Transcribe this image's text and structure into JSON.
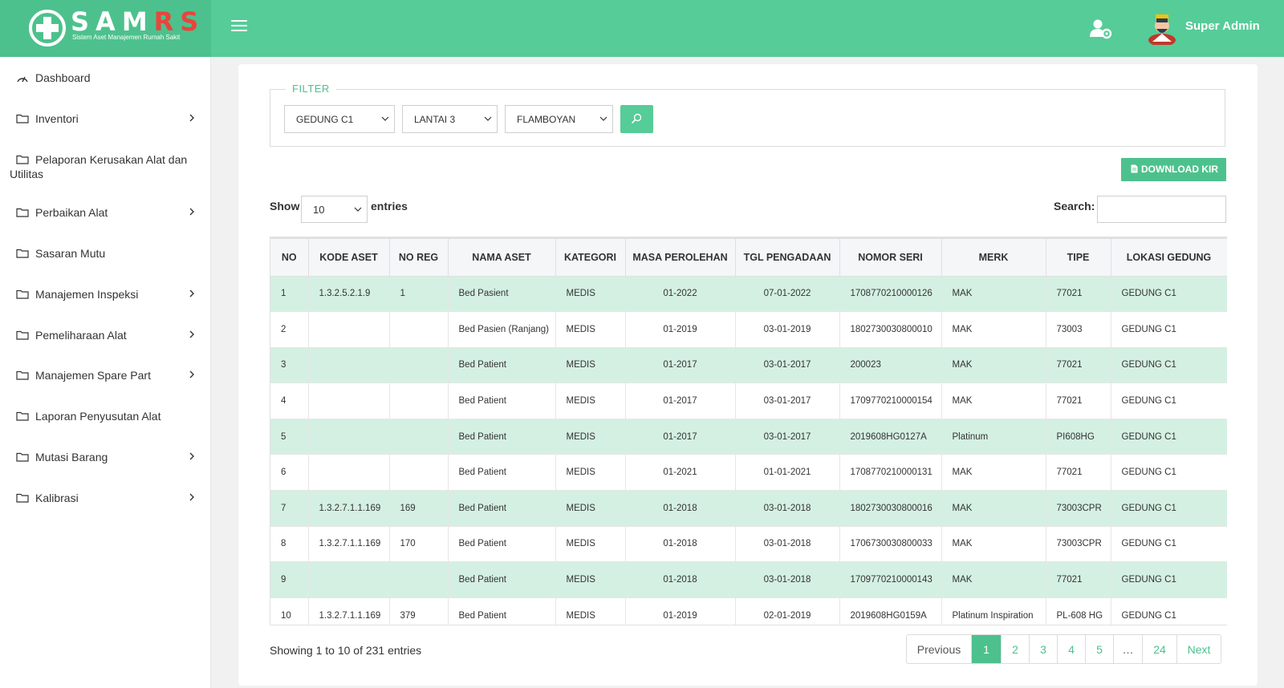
{
  "header": {
    "logo_text": "SAMRS",
    "logo_part1": "SAM",
    "logo_part2": "RS",
    "logo_subtitle": "Sistem Aset Manajemen Rumah Sakit",
    "user_name": "Super Admin",
    "brand_color": "#56cc98",
    "accent_red": "#e8453c"
  },
  "sidebar": {
    "items": [
      {
        "label": "Dashboard",
        "icon": "dashboard-icon",
        "has_submenu": false
      },
      {
        "label": "Inventori",
        "icon": "folder-icon",
        "has_submenu": true
      },
      {
        "label": "Pelaporan Kerusakan Alat dan",
        "label2": "Utilitas",
        "icon": "folder-icon",
        "has_submenu": false
      },
      {
        "label": "Perbaikan Alat",
        "icon": "folder-icon",
        "has_submenu": true
      },
      {
        "label": "Sasaran Mutu",
        "icon": "folder-icon",
        "has_submenu": false
      },
      {
        "label": "Manajemen Inspeksi",
        "icon": "folder-icon",
        "has_submenu": true
      },
      {
        "label": "Pemeliharaan Alat",
        "icon": "folder-icon",
        "has_submenu": true
      },
      {
        "label": "Manajemen Spare Part",
        "icon": "folder-icon",
        "has_submenu": true
      },
      {
        "label": "Laporan Penyusutan Alat",
        "icon": "folder-icon",
        "has_submenu": false
      },
      {
        "label": "Mutasi Barang",
        "icon": "folder-icon",
        "has_submenu": true
      },
      {
        "label": "Kalibrasi",
        "icon": "folder-icon",
        "has_submenu": true
      }
    ]
  },
  "filter": {
    "legend": "FILTER",
    "gedung": "GEDUNG C1",
    "lantai": "LANTAI 3",
    "ruangan": "FLAMBOYAN"
  },
  "toolbar": {
    "download_label": "DOWNLOAD KIR",
    "show_label": "Show",
    "entries_value": "10",
    "entries_label": "entries",
    "search_label": "Search:",
    "search_value": ""
  },
  "table": {
    "columns": [
      "NO",
      "KODE ASET",
      "NO REG",
      "NAMA ASET",
      "KATEGORI",
      "MASA PEROLEHAN",
      "TGL PENGADAAN",
      "NOMOR SERI",
      "MERK",
      "TIPE",
      "LOKASI GEDUNG"
    ],
    "rows": [
      [
        "1",
        "1.3.2.5.2.1.9",
        "1",
        "Bed Pasient",
        "MEDIS",
        "01-2022",
        "07-01-2022",
        "1708770210000126",
        "MAK",
        "77021",
        "GEDUNG C1"
      ],
      [
        "2",
        "",
        "",
        "Bed Pasien (Ranjang)",
        "MEDIS",
        "01-2019",
        "03-01-2019",
        "1802730030800010",
        "MAK",
        "73003",
        "GEDUNG C1"
      ],
      [
        "3",
        "",
        "",
        "Bed Patient",
        "MEDIS",
        "01-2017",
        "03-01-2017",
        "200023",
        "MAK",
        "77021",
        "GEDUNG C1"
      ],
      [
        "4",
        "",
        "",
        "Bed Patient",
        "MEDIS",
        "01-2017",
        "03-01-2017",
        "1709770210000154",
        "MAK",
        "77021",
        "GEDUNG C1"
      ],
      [
        "5",
        "",
        "",
        "Bed Patient",
        "MEDIS",
        "01-2017",
        "03-01-2017",
        "2019608HG0127A",
        "Platinum",
        "PI608HG",
        "GEDUNG C1"
      ],
      [
        "6",
        "",
        "",
        "Bed Patient",
        "MEDIS",
        "01-2021",
        "01-01-2021",
        "1708770210000131",
        "MAK",
        "77021",
        "GEDUNG C1"
      ],
      [
        "7",
        "1.3.2.7.1.1.169",
        "169",
        "Bed Patient",
        "MEDIS",
        "01-2018",
        "03-01-2018",
        "1802730030800016",
        "MAK",
        "73003CPR",
        "GEDUNG C1"
      ],
      [
        "8",
        "1.3.2.7.1.1.169",
        "170",
        "Bed Patient",
        "MEDIS",
        "01-2018",
        "03-01-2018",
        "1706730030800033",
        "MAK",
        "73003CPR",
        "GEDUNG C1"
      ],
      [
        "9",
        "",
        "",
        "Bed Patient",
        "MEDIS",
        "01-2018",
        "03-01-2018",
        "1709770210000143",
        "MAK",
        "77021",
        "GEDUNG C1"
      ],
      [
        "10",
        "1.3.2.7.1.1.169",
        "379",
        "Bed Patient",
        "MEDIS",
        "01-2019",
        "02-01-2019",
        "2019608HG0159A",
        "Platinum Inspiration",
        "PL-608 HG",
        "GEDUNG C1"
      ]
    ]
  },
  "footer": {
    "info": "Showing 1 to 10 of 231 entries",
    "pagination": {
      "previous": "Previous",
      "pages": [
        "1",
        "2",
        "3",
        "4",
        "5"
      ],
      "ellipsis": "…",
      "last": "24",
      "next": "Next",
      "active": "1"
    }
  }
}
